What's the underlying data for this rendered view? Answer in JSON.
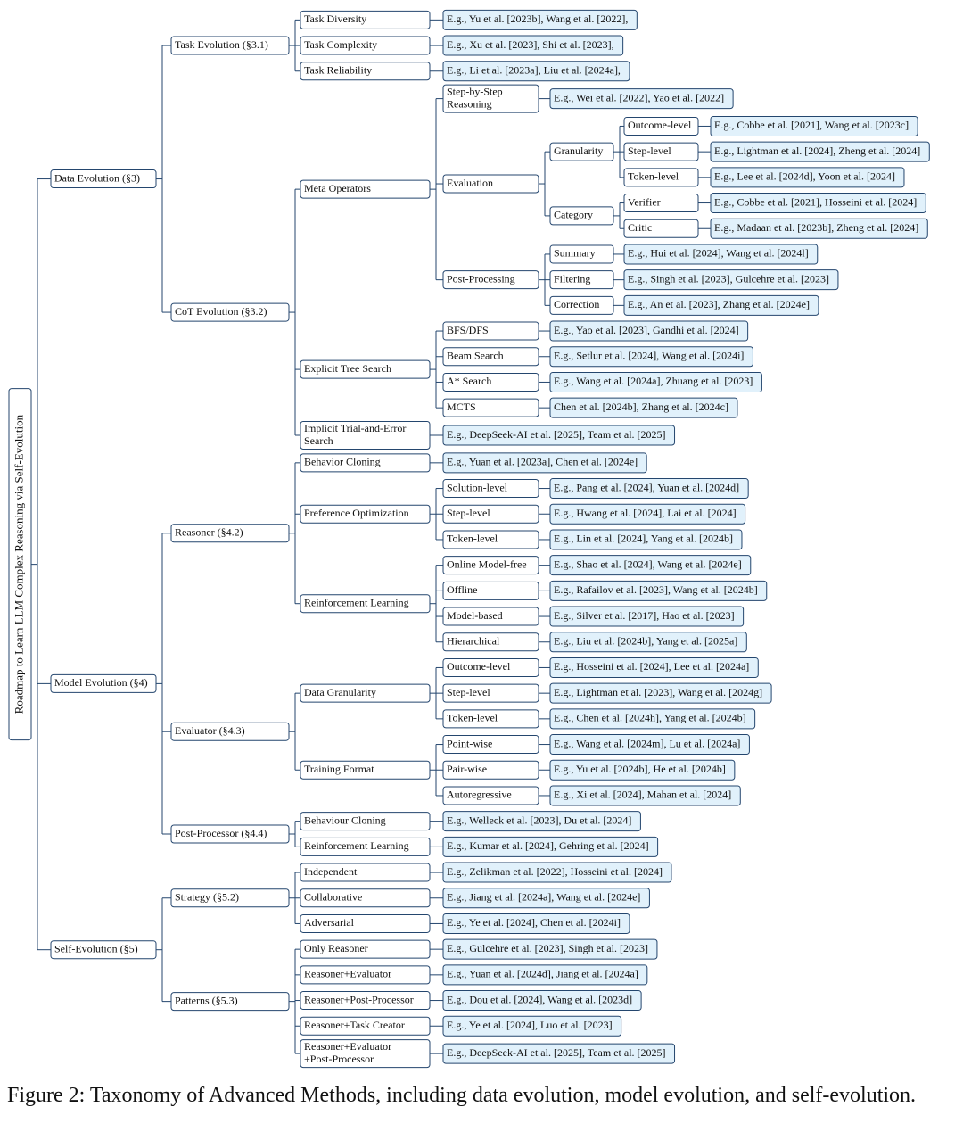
{
  "tree": {
    "label": "Roadmap to Learn LLM Complex Reasoning via Self-Evolution",
    "children": [
      {
        "label": "Data Evolution (§3)",
        "children": [
          {
            "label": "Task Evolution (§3.1)",
            "children": [
              {
                "label": "Task Diversity",
                "refs": "E.g., Yu et al. [2023b], Wang et al. [2022],"
              },
              {
                "label": "Task Complexity",
                "refs": "E.g., Xu et al. [2023], Shi et al. [2023],"
              },
              {
                "label": "Task Reliability",
                "refs": "E.g., Li et al. [2023a], Liu et al. [2024a],"
              }
            ]
          },
          {
            "label": "CoT Evolution (§3.2)",
            "children": [
              {
                "label": "Meta Operators",
                "children": [
                  {
                    "label": [
                      "Step-by-Step",
                      "Reasoning"
                    ],
                    "refs": "E.g., Wei et al. [2022], Yao et al. [2022]"
                  },
                  {
                    "label": "Evaluation",
                    "children": [
                      {
                        "label": "Granularity",
                        "children": [
                          {
                            "label": "Outcome-level",
                            "refs": "E.g., Cobbe et al. [2021], Wang et al. [2023c]"
                          },
                          {
                            "label": "Step-level",
                            "refs": "E.g., Lightman et al. [2024], Zheng et al. [2024]"
                          },
                          {
                            "label": "Token-level",
                            "refs": "E.g., Lee et al. [2024d], Yoon et al. [2024]"
                          }
                        ]
                      },
                      {
                        "label": "Category",
                        "children": [
                          {
                            "label": "Verifier",
                            "refs": "E.g., Cobbe et al. [2021], Hosseini et al. [2024]"
                          },
                          {
                            "label": "Critic",
                            "refs": "E.g., Madaan et al. [2023b], Zheng et al. [2024]"
                          }
                        ]
                      }
                    ]
                  },
                  {
                    "label": "Post-Processing",
                    "children": [
                      {
                        "label": "Summary",
                        "refs": "E.g., Hui et al. [2024], Wang et al. [2024l]"
                      },
                      {
                        "label": "Filtering",
                        "refs": "E.g., Singh et al. [2023], Gulcehre et al. [2023]"
                      },
                      {
                        "label": "Correction",
                        "refs": "E.g., An et al. [2023], Zhang et al. [2024e]"
                      }
                    ]
                  }
                ]
              },
              {
                "label": "Explicit Tree Search",
                "children": [
                  {
                    "label": "BFS/DFS",
                    "refs": "E.g., Yao et al. [2023], Gandhi et al. [2024]"
                  },
                  {
                    "label": "Beam Search",
                    "refs": "E.g., Setlur et al. [2024], Wang et al. [2024i]"
                  },
                  {
                    "label": "A* Search",
                    "refs": "E.g., Wang et al. [2024a], Zhuang et al. [2023]"
                  },
                  {
                    "label": "MCTS",
                    "refs": "Chen et al. [2024b], Zhang et al. [2024c]"
                  }
                ]
              },
              {
                "label": [
                  "Implicit Trial-and-Error",
                  "Search"
                ],
                "refs": "E.g., DeepSeek-AI et al. [2025], Team et al. [2025]"
              }
            ]
          }
        ]
      },
      {
        "label": "Model Evolution (§4)",
        "children": [
          {
            "label": "Reasoner (§4.2)",
            "children": [
              {
                "label": "Behavior Cloning",
                "refs": "E.g., Yuan et al. [2023a], Chen et al. [2024e]"
              },
              {
                "label": "Preference Optimization",
                "children": [
                  {
                    "label": "Solution-level",
                    "refs": "E.g., Pang et al. [2024], Yuan et al. [2024d]"
                  },
                  {
                    "label": "Step-level",
                    "refs": "E.g., Hwang et al. [2024], Lai et al. [2024]"
                  },
                  {
                    "label": "Token-level",
                    "refs": "E.g., Lin et al. [2024], Yang et al. [2024b]"
                  }
                ]
              },
              {
                "label": "Reinforcement Learning",
                "children": [
                  {
                    "label": "Online Model-free",
                    "refs": "E.g., Shao et al. [2024], Wang et al. [2024e]"
                  },
                  {
                    "label": "Offline",
                    "refs": "E.g., Rafailov et al. [2023], Wang et al. [2024b]"
                  },
                  {
                    "label": "Model-based",
                    "refs": "E.g., Silver et al. [2017], Hao et al. [2023]"
                  },
                  {
                    "label": "Hierarchical",
                    "refs": "E.g., Liu et al. [2024b], Yang et al. [2025a]"
                  }
                ]
              }
            ]
          },
          {
            "label": "Evaluator (§4.3)",
            "children": [
              {
                "label": "Data Granularity",
                "children": [
                  {
                    "label": "Outcome-level",
                    "refs": "E.g., Hosseini et al. [2024], Lee et al. [2024a]"
                  },
                  {
                    "label": "Step-level",
                    "refs": "E.g., Lightman et al. [2023], Wang et al. [2024g]"
                  },
                  {
                    "label": "Token-level",
                    "refs": "E.g., Chen et al. [2024h], Yang et al. [2024b]"
                  }
                ]
              },
              {
                "label": "Training Format",
                "children": [
                  {
                    "label": "Point-wise",
                    "refs": "E.g., Wang et al. [2024m], Lu et al. [2024a]"
                  },
                  {
                    "label": "Pair-wise",
                    "refs": "E.g., Yu et al. [2024b], He et al. [2024b]"
                  },
                  {
                    "label": "Autoregressive",
                    "refs": "E.g., Xi et al. [2024], Mahan et al. [2024]"
                  }
                ]
              }
            ]
          },
          {
            "label": "Post-Processor (§4.4)",
            "children": [
              {
                "label": "Behaviour Cloning",
                "refs": "E.g., Welleck et al. [2023], Du et al. [2024]"
              },
              {
                "label": "Reinforcement Learning",
                "refs": "E.g., Kumar et al. [2024], Gehring et al. [2024]"
              }
            ]
          }
        ]
      },
      {
        "label": "Self-Evolution (§5)",
        "children": [
          {
            "label": "Strategy (§5.2)",
            "children": [
              {
                "label": "Independent",
                "refs": "E.g., Zelikman et al. [2022], Hosseini et al. [2024]"
              },
              {
                "label": "Collaborative",
                "refs": "E.g., Jiang et al. [2024a], Wang et al. [2024e]"
              },
              {
                "label": "Adversarial",
                "refs": "E.g., Ye et al. [2024], Chen et al. [2024i]"
              }
            ]
          },
          {
            "label": "Patterns (§5.3)",
            "children": [
              {
                "label": "Only Reasoner",
                "refs": "E.g., Gulcehre et al. [2023], Singh et al. [2023]"
              },
              {
                "label": "Reasoner+Evaluator",
                "refs": "E.g., Yuan et al. [2024d], Jiang et al. [2024a]"
              },
              {
                "label": "Reasoner+Post-Processor",
                "refs": "E.g., Dou et al. [2024], Wang et al. [2023d]"
              },
              {
                "label": "Reasoner+Task Creator",
                "refs": "E.g., Ye et al. [2024], Luo et al. [2023]"
              },
              {
                "label": [
                  "Reasoner+Evaluator",
                  "+Post-Processor"
                ],
                "refs": "E.g., DeepSeek-AI et al. [2025], Team et al. [2025]"
              }
            ]
          }
        ]
      }
    ]
  },
  "caption": "Figure 2: Taxonomy of Advanced Methods, including data evolution, model evolution, and self-evolution."
}
